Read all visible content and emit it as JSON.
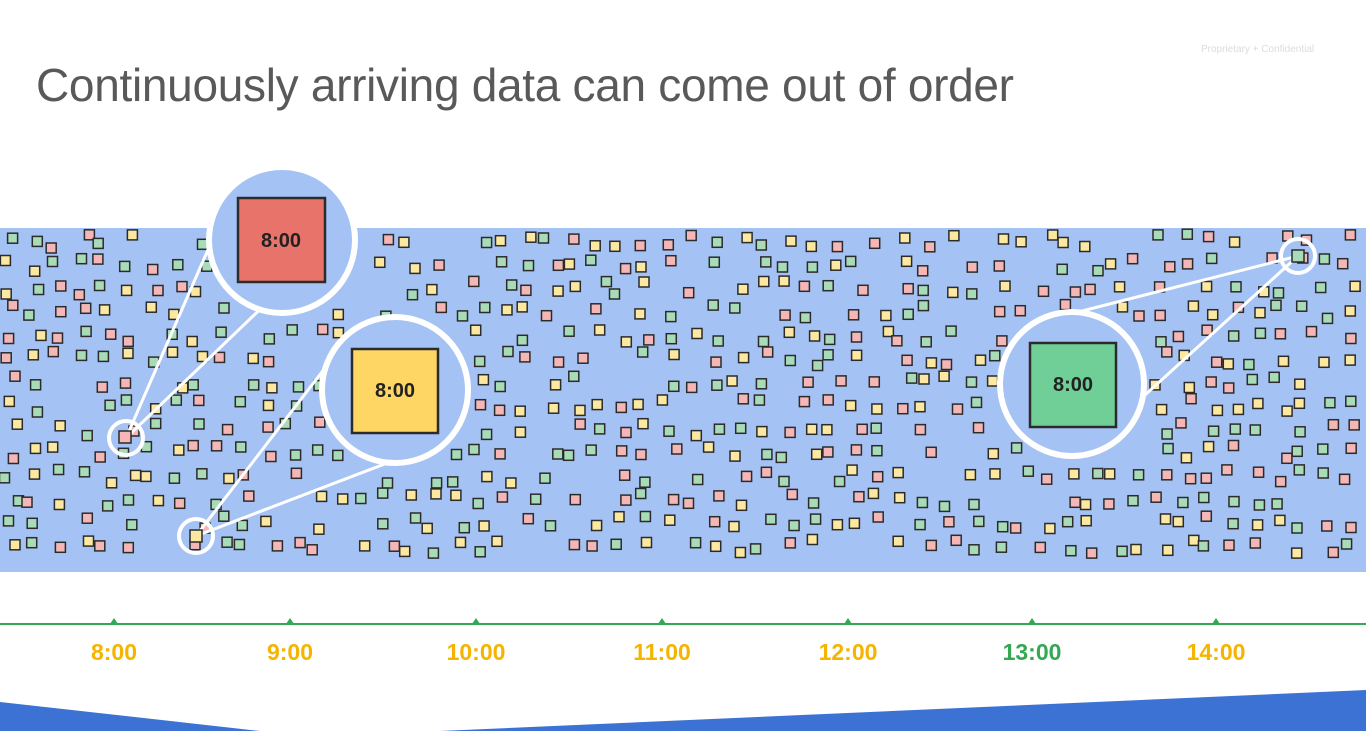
{
  "slide": {
    "title": "Continuously arriving data can come out of order",
    "confidential_note": "Proprietary + Confidential"
  },
  "timeline": {
    "ticks": [
      {
        "label": "8:00",
        "color": "#f4b400"
      },
      {
        "label": "9:00",
        "color": "#f4b400"
      },
      {
        "label": "10:00",
        "color": "#f4b400"
      },
      {
        "label": "11:00",
        "color": "#f4b400"
      },
      {
        "label": "12:00",
        "color": "#f4b400"
      },
      {
        "label": "13:00",
        "color": "#34a853"
      },
      {
        "label": "14:00",
        "color": "#f4b400"
      }
    ],
    "line_color": "#34a853"
  },
  "callouts": [
    {
      "label": "8:00",
      "color": "#e8736b"
    },
    {
      "label": "8:00",
      "color": "#fdd663"
    },
    {
      "label": "8:00",
      "color": "#6fcf97"
    }
  ],
  "colors": {
    "stream_band": "#a4c2f4",
    "pink": "#f4b6b6",
    "yellow": "#fce8a0",
    "green": "#a8dcb8",
    "square_border": "#2b2b2b",
    "accent_bar": "#3c72d4"
  }
}
